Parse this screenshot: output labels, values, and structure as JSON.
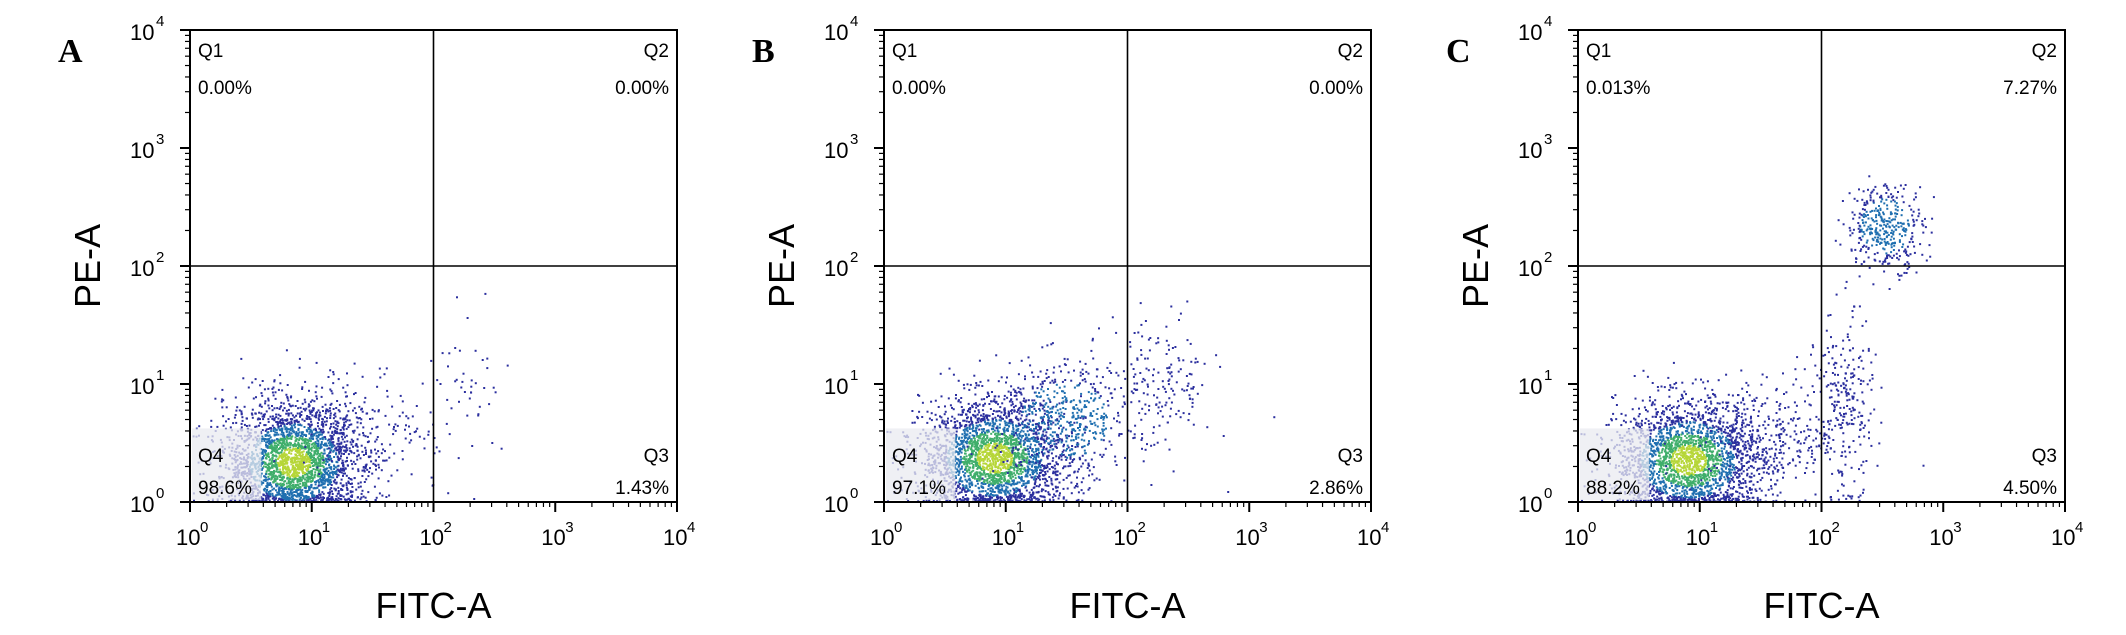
{
  "chart_data": [
    {
      "type": "scatter",
      "panel_label": "A",
      "xlabel": "FITC-A",
      "ylabel": "PE-A",
      "x_scale": "log",
      "y_scale": "log",
      "xlim": [
        1,
        10000
      ],
      "ylim": [
        1,
        10000
      ],
      "x_ticks": [
        {
          "base": "10",
          "exp": "0"
        },
        {
          "base": "10",
          "exp": "1"
        },
        {
          "base": "10",
          "exp": "2"
        },
        {
          "base": "10",
          "exp": "3"
        },
        {
          "base": "10",
          "exp": "4"
        }
      ],
      "y_ticks": [
        {
          "base": "10",
          "exp": "0"
        },
        {
          "base": "10",
          "exp": "1"
        },
        {
          "base": "10",
          "exp": "2"
        },
        {
          "base": "10",
          "exp": "3"
        },
        {
          "base": "10",
          "exp": "4"
        }
      ],
      "gate": {
        "x": 100,
        "y": 100
      },
      "quadrants": {
        "q1": {
          "name": "Q1",
          "value": "0.00%"
        },
        "q2": {
          "name": "Q2",
          "value": "0.00%"
        },
        "q3": {
          "name": "Q3",
          "value": "1.43%"
        },
        "q4": {
          "name": "Q4",
          "value": "98.6%"
        }
      },
      "clusters": [
        {
          "x": 7,
          "y": 2.2,
          "sx": 0.28,
          "sy": 0.25,
          "n": 2600
        },
        {
          "x": 25,
          "y": 4,
          "sx": 0.25,
          "sy": 0.28,
          "n": 160
        },
        {
          "x": 180,
          "y": 8,
          "sx": 0.2,
          "sy": 0.32,
          "n": 60
        }
      ]
    },
    {
      "type": "scatter",
      "panel_label": "B",
      "xlabel": "FITC-A",
      "ylabel": "PE-A",
      "x_scale": "log",
      "y_scale": "log",
      "xlim": [
        1,
        10000
      ],
      "ylim": [
        1,
        10000
      ],
      "x_ticks": [
        {
          "base": "10",
          "exp": "0"
        },
        {
          "base": "10",
          "exp": "1"
        },
        {
          "base": "10",
          "exp": "2"
        },
        {
          "base": "10",
          "exp": "3"
        },
        {
          "base": "10",
          "exp": "4"
        }
      ],
      "y_ticks": [
        {
          "base": "10",
          "exp": "0"
        },
        {
          "base": "10",
          "exp": "1"
        },
        {
          "base": "10",
          "exp": "2"
        },
        {
          "base": "10",
          "exp": "3"
        },
        {
          "base": "10",
          "exp": "4"
        }
      ],
      "gate": {
        "x": 100,
        "y": 100
      },
      "quadrants": {
        "q1": {
          "name": "Q1",
          "value": "0.00%"
        },
        "q2": {
          "name": "Q2",
          "value": "0.00%"
        },
        "q3": {
          "name": "Q3",
          "value": "2.86%"
        },
        "q4": {
          "name": "Q4",
          "value": "97.1%"
        }
      },
      "clusters": [
        {
          "x": 8,
          "y": 2.4,
          "sx": 0.3,
          "sy": 0.25,
          "n": 2500
        },
        {
          "x": 30,
          "y": 5,
          "sx": 0.28,
          "sy": 0.25,
          "n": 500
        },
        {
          "x": 180,
          "y": 10,
          "sx": 0.22,
          "sy": 0.3,
          "n": 170
        }
      ]
    },
    {
      "type": "scatter",
      "panel_label": "C",
      "xlabel": "FITC-A",
      "ylabel": "PE-A",
      "x_scale": "log",
      "y_scale": "log",
      "xlim": [
        1,
        10000
      ],
      "ylim": [
        1,
        10000
      ],
      "x_ticks": [
        {
          "base": "10",
          "exp": "0"
        },
        {
          "base": "10",
          "exp": "1"
        },
        {
          "base": "10",
          "exp": "2"
        },
        {
          "base": "10",
          "exp": "3"
        },
        {
          "base": "10",
          "exp": "4"
        }
      ],
      "y_ticks": [
        {
          "base": "10",
          "exp": "0"
        },
        {
          "base": "10",
          "exp": "1"
        },
        {
          "base": "10",
          "exp": "2"
        },
        {
          "base": "10",
          "exp": "3"
        },
        {
          "base": "10",
          "exp": "4"
        }
      ],
      "gate": {
        "x": 100,
        "y": 100
      },
      "quadrants": {
        "q1": {
          "name": "Q1",
          "value": "0.013%"
        },
        "q2": {
          "name": "Q2",
          "value": "7.27%"
        },
        "q3": {
          "name": "Q3",
          "value": "4.50%"
        },
        "q4": {
          "name": "Q4",
          "value": "88.2%"
        }
      },
      "clusters": [
        {
          "x": 8,
          "y": 2.3,
          "sx": 0.3,
          "sy": 0.25,
          "n": 2300
        },
        {
          "x": 35,
          "y": 3.5,
          "sx": 0.3,
          "sy": 0.25,
          "n": 300
        },
        {
          "x": 150,
          "y": 6,
          "sx": 0.12,
          "sy": 0.4,
          "n": 260
        },
        {
          "x": 330,
          "y": 220,
          "sx": 0.16,
          "sy": 0.18,
          "n": 380
        }
      ]
    }
  ]
}
